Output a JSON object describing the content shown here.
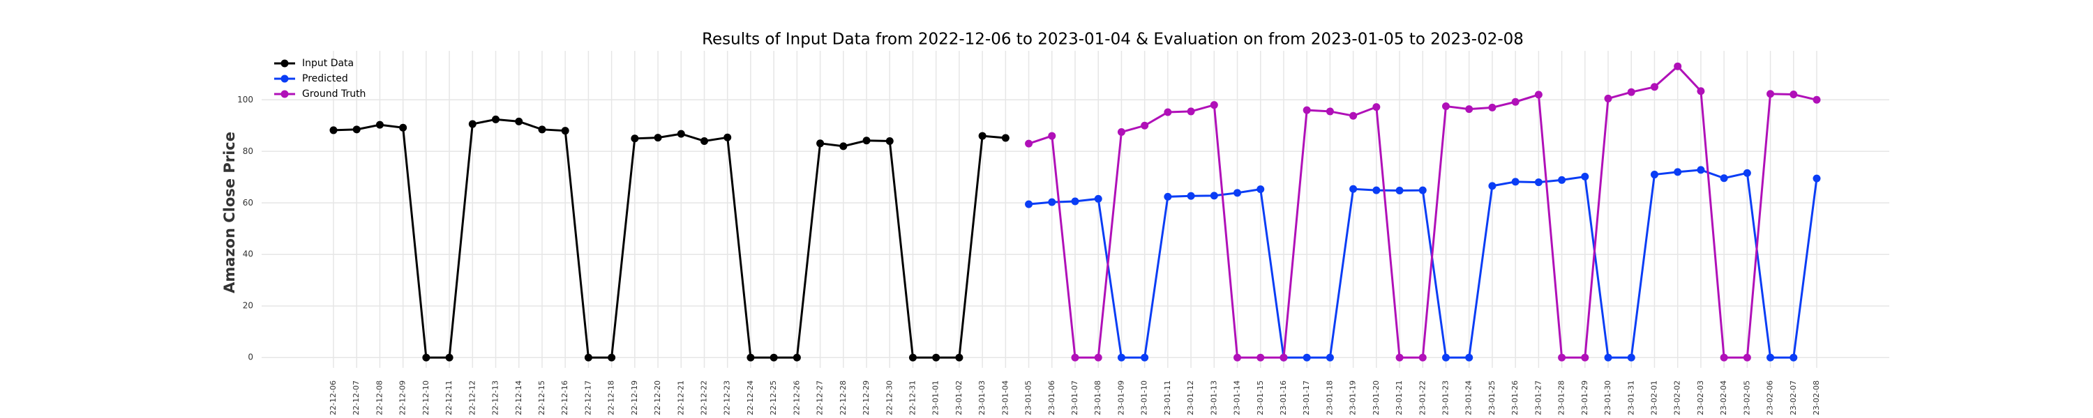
{
  "chart_data": {
    "type": "line",
    "title": "Results of Input Data from 2022-12-06 to 2023-01-04 & Evaluation on from 2023-01-05 to 2023-02-08",
    "ylabel": "Amazon Close Price",
    "categories": [
      "22-12-06",
      "22-12-07",
      "22-12-08",
      "22-12-09",
      "22-12-10",
      "22-12-11",
      "22-12-12",
      "22-12-13",
      "22-12-14",
      "22-12-15",
      "22-12-16",
      "22-12-17",
      "22-12-18",
      "22-12-19",
      "22-12-20",
      "22-12-21",
      "22-12-22",
      "22-12-23",
      "22-12-24",
      "22-12-25",
      "22-12-26",
      "22-12-27",
      "22-12-28",
      "22-12-29",
      "22-12-30",
      "22-12-31",
      "23-01-01",
      "23-01-02",
      "23-01-03",
      "23-01-04",
      "23-01-05",
      "23-01-06",
      "23-01-07",
      "23-01-08",
      "23-01-09",
      "23-01-10",
      "23-01-11",
      "23-01-12",
      "23-01-13",
      "23-01-14",
      "23-01-15",
      "23-01-16",
      "23-01-17",
      "23-01-18",
      "23-01-19",
      "23-01-20",
      "23-01-21",
      "23-01-22",
      "23-01-23",
      "23-01-24",
      "23-01-25",
      "23-01-26",
      "23-01-27",
      "23-01-28",
      "23-01-29",
      "23-01-30",
      "23-01-31",
      "23-02-01",
      "23-02-02",
      "23-02-03",
      "23-02-04",
      "23-02-05",
      "23-02-06",
      "23-02-07",
      "23-02-08"
    ],
    "series": [
      {
        "name": "Input Data",
        "color": "#000000",
        "values": [
          88.2,
          88.5,
          90.3,
          89.2,
          0,
          0,
          90.6,
          92.4,
          91.6,
          88.5,
          88,
          0,
          0,
          85,
          85.3,
          86.8,
          84,
          85.4,
          0,
          0,
          0,
          83.1,
          82,
          84.2,
          84,
          0,
          0,
          0,
          86,
          85.2,
          null,
          null,
          null,
          null,
          null,
          null,
          null,
          null,
          null,
          null,
          null,
          null,
          null,
          null,
          null,
          null,
          null,
          null,
          null,
          null,
          null,
          null,
          null,
          null,
          null,
          null,
          null,
          null,
          null,
          null,
          null,
          null,
          null,
          null,
          null
        ]
      },
      {
        "name": "Predicted",
        "color": "#0a3df5",
        "values": [
          null,
          null,
          null,
          null,
          null,
          null,
          null,
          null,
          null,
          null,
          null,
          null,
          null,
          null,
          null,
          null,
          null,
          null,
          null,
          null,
          null,
          null,
          null,
          null,
          null,
          null,
          null,
          null,
          null,
          null,
          59.5,
          60.3,
          60.6,
          61.6,
          0,
          0,
          62.4,
          62.7,
          62.8,
          63.9,
          65.3,
          0,
          0,
          0,
          65.4,
          64.9,
          64.8,
          64.9,
          0,
          0,
          66.6,
          68.2,
          68,
          68.9,
          70.2,
          0,
          0,
          71,
          72,
          72.8,
          69.6,
          71.6,
          0,
          0,
          69.5
        ]
      },
      {
        "name": "Ground Truth",
        "color": "#b010b8",
        "values": [
          null,
          null,
          null,
          null,
          null,
          null,
          null,
          null,
          null,
          null,
          null,
          null,
          null,
          null,
          null,
          null,
          null,
          null,
          null,
          null,
          null,
          null,
          null,
          null,
          null,
          null,
          null,
          null,
          null,
          null,
          83,
          86,
          0,
          0,
          87.5,
          90,
          95.2,
          95.5,
          98,
          0,
          0,
          0,
          96,
          95.5,
          93.8,
          97.2,
          0,
          0,
          97.5,
          96.4,
          97,
          99.2,
          102,
          0,
          0,
          100.5,
          103,
          105,
          113,
          103.4,
          0,
          0,
          102.3,
          102.1,
          100
        ]
      }
    ],
    "ylim": [
      -4,
      119
    ],
    "yticks": [
      0,
      20,
      40,
      60,
      80,
      100
    ],
    "grid": true,
    "legend": "upper left"
  }
}
